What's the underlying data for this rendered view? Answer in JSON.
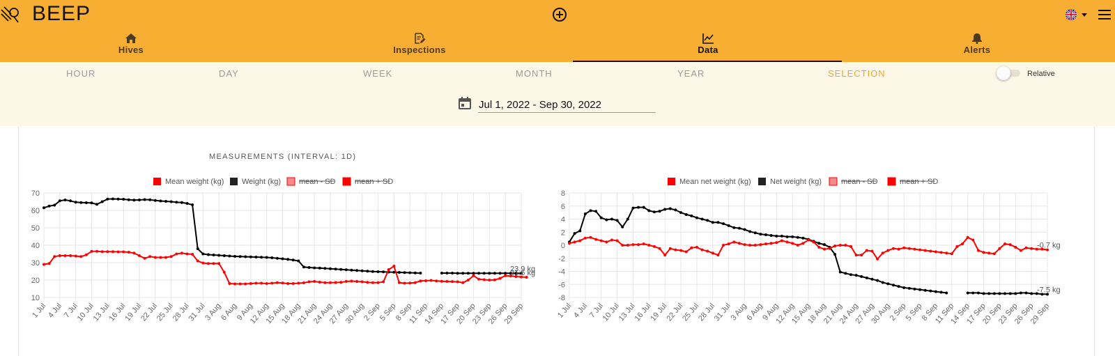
{
  "app": {
    "title": "BEEP"
  },
  "tabs": [
    {
      "label": "Hives",
      "icon": "home-icon"
    },
    {
      "label": "Inspections",
      "icon": "edit-document-icon"
    },
    {
      "label": "Data",
      "icon": "line-chart-icon",
      "active": true
    },
    {
      "label": "Alerts",
      "icon": "bell-icon"
    }
  ],
  "periods": [
    "HOUR",
    "DAY",
    "WEEK",
    "MONTH",
    "YEAR",
    "SELECTION"
  ],
  "active_period": "SELECTION",
  "relative_toggle": {
    "label": "Relative",
    "on": false
  },
  "date_range": {
    "value": "Jul 1, 2022 - Sep 30, 2022"
  },
  "section_title": "MEASUREMENTS (INTERVAL: 1D)",
  "colors": {
    "accent": "#f8ae33",
    "selection": "#f0a531",
    "mean": "#ff0000",
    "weight": "#000000",
    "sd_minus": "#f28b8b",
    "sd_plus": "#ff0000"
  },
  "chart_data": [
    {
      "type": "line",
      "legend": [
        {
          "label": "Mean weight (kg)",
          "color": "#ff0000",
          "hidden": false
        },
        {
          "label": "Weight (kg)",
          "color": "#222222",
          "hidden": false
        },
        {
          "label": "mean - SD",
          "color": "#f28b8b",
          "hidden": true
        },
        {
          "label": "mean + SD",
          "color": "#ff0000",
          "hidden": true
        }
      ],
      "ylim": [
        10,
        70
      ],
      "yticks": [
        70,
        60,
        50,
        40,
        30,
        20,
        10
      ],
      "xticks": [
        "1 Jul",
        "4 Jul",
        "7 Jul",
        "10 Jul",
        "13 Jul",
        "16 Jul",
        "19 Jul",
        "22 Jul",
        "25 Jul",
        "28 Jul",
        "31 Jul",
        "3 Aug",
        "6 Aug",
        "9 Aug",
        "12 Aug",
        "15 Aug",
        "18 Aug",
        "21 Aug",
        "24 Aug",
        "27 Aug",
        "30 Aug",
        "2 Sep",
        "5 Sep",
        "8 Sep",
        "11 Sep",
        "14 Sep",
        "17 Sep",
        "20 Sep",
        "23 Sep",
        "26 Sep",
        "29 Sep"
      ],
      "last_labels": [
        {
          "text": "23.9 kg",
          "y": 23.9
        },
        {
          "text": "21.6 kg",
          "y": 21.6
        }
      ],
      "series": [
        {
          "name": "Weight (kg)",
          "color": "#000000",
          "values": [
            61.5,
            62.5,
            63,
            65.5,
            66,
            65.5,
            64.7,
            64.5,
            64.4,
            64.3,
            63.5,
            65,
            66.5,
            66.6,
            66.5,
            66.4,
            66.1,
            65.9,
            66,
            66.2,
            66.1,
            65.7,
            65.4,
            65.2,
            65,
            64.7,
            64.5,
            64,
            63.2,
            38,
            35,
            34.6,
            34.4,
            34.2,
            34,
            33.8,
            33.6,
            33.5,
            33.4,
            33.3,
            33.2,
            33.1,
            33,
            32.8,
            32.5,
            32.2,
            31.9,
            31.5,
            31,
            27.5,
            27.2,
            27,
            26.9,
            26.7,
            26.5,
            26.3,
            26.1,
            25.9,
            25.7,
            25.5,
            25.3,
            25.1,
            24.9,
            24.8,
            24.7,
            24.6,
            24.5,
            24.4,
            24.3,
            24.2,
            24.1,
            24,
            null,
            null,
            null,
            24,
            24,
            24,
            23.9,
            23.9,
            23.9,
            23.9,
            23.9,
            23.9,
            23.9,
            23.9,
            23.9,
            23.9,
            23.9,
            23.9,
            23.9
          ]
        },
        {
          "name": "Mean weight (kg)",
          "color": "#ff0000",
          "values": [
            29,
            29.5,
            33.5,
            34,
            34,
            34,
            33.8,
            33.5,
            34.5,
            36.5,
            36.5,
            36.3,
            36.3,
            36.3,
            36.2,
            36.2,
            36,
            35.5,
            34,
            32.5,
            33.5,
            33,
            33,
            33,
            33.5,
            35,
            35.5,
            35,
            34.8,
            31,
            29.8,
            29.5,
            29.5,
            29.5,
            24.5,
            18,
            17.8,
            17.8,
            17.8,
            18,
            18.2,
            18.2,
            18,
            18.2,
            18.5,
            18.3,
            18,
            18,
            18.2,
            18.4,
            19,
            19.2,
            18.8,
            18.5,
            18.5,
            18.6,
            18.7,
            19.2,
            19.4,
            19.2,
            19,
            18.7,
            18.5,
            18.5,
            19,
            26,
            28,
            18.5,
            18.2,
            18.3,
            18.5,
            19.5,
            19.6,
            19.8,
            19.5,
            19.3,
            19.2,
            19.1,
            19,
            18.5,
            20,
            22.5,
            20.5,
            20.2,
            20,
            20.1,
            21,
            22.5,
            22.3,
            22,
            21.8,
            21.6
          ]
        }
      ]
    },
    {
      "type": "line",
      "legend": [
        {
          "label": "Mean net weight (kg)",
          "color": "#ff0000",
          "hidden": false
        },
        {
          "label": "Net weight (kg)",
          "color": "#222222",
          "hidden": false
        },
        {
          "label": "mean - SD",
          "color": "#f28b8b",
          "hidden": true
        },
        {
          "label": "mean + SD",
          "color": "#ff0000",
          "hidden": true
        }
      ],
      "ylim": [
        -8,
        8
      ],
      "yticks": [
        8,
        6,
        4,
        2,
        0,
        -2,
        -4,
        -6,
        -8
      ],
      "xticks": [
        "1 Jul",
        "4 Jul",
        "7 Jul",
        "10 Jul",
        "13 Jul",
        "16 Jul",
        "19 Jul",
        "22 Jul",
        "25 Jul",
        "28 Jul",
        "31 Jul",
        "3 Aug",
        "6 Aug",
        "9 Aug",
        "12 Aug",
        "15 Aug",
        "18 Aug",
        "21 Aug",
        "24 Aug",
        "27 Aug",
        "30 Aug",
        "2 Sep",
        "5 Sep",
        "8 Sep",
        "11 Sep",
        "14 Sep",
        "17 Sep",
        "20 Sep",
        "23 Sep",
        "26 Sep",
        "29 Sep"
      ],
      "last_labels": [
        {
          "text": "-0.7 kg",
          "y": -0.7
        },
        {
          "text": "-7.5 kg",
          "y": -7.5
        }
      ],
      "series": [
        {
          "name": "Net weight (kg)",
          "color": "#000000",
          "values": [
            0.5,
            1.8,
            2.2,
            4.8,
            5.3,
            5.2,
            4.2,
            3.9,
            4,
            3.8,
            2.8,
            4,
            5.7,
            5.8,
            5.8,
            5.3,
            5.1,
            5.2,
            5.5,
            5.6,
            5.4,
            5,
            4.7,
            4.5,
            4.2,
            4,
            3.8,
            3.5,
            3.5,
            3.3,
            3,
            2.7,
            2.6,
            2.4,
            2.1,
            1.9,
            1.7,
            1.6,
            1.5,
            1.4,
            1.4,
            1.3,
            1.3,
            1.2,
            1.1,
            0.9,
            0.6,
            0.3,
            0.1,
            -0.3,
            -1.4,
            -4.1,
            -4.3,
            -4.5,
            -4.6,
            -4.8,
            -5,
            -5.2,
            -5.4,
            -5.7,
            -5.9,
            -6.1,
            -6.3,
            -6.5,
            -6.6,
            -6.7,
            -6.8,
            -6.9,
            -7,
            -7.1,
            -7.2,
            -7.3,
            null,
            null,
            null,
            -7.3,
            -7.3,
            -7.3,
            -7.4,
            -7.4,
            -7.4,
            -7.4,
            -7.4,
            -7.4,
            -7.4,
            -7.3,
            -7.3,
            -7.4,
            -7.4,
            -7.5,
            -7.5
          ]
        },
        {
          "name": "Mean net weight (kg)",
          "color": "#ff0000",
          "values": [
            0.3,
            0.5,
            0.7,
            1.1,
            1.2,
            0.9,
            0.7,
            0.5,
            0.8,
            0.7,
            0,
            0,
            0.1,
            0.1,
            0.2,
            0,
            -0.2,
            -0.5,
            -1.5,
            -0.5,
            -0.7,
            -0.8,
            -1,
            -0.4,
            -0.3,
            -0.7,
            -0.9,
            -1.2,
            -1.5,
            0,
            0.2,
            0.5,
            0.3,
            0.1,
            0,
            0,
            0.1,
            0.2,
            0.3,
            0.4,
            0.7,
            0.5,
            0.3,
            0,
            0.3,
            0.8,
            0.5,
            -0.3,
            -0.6,
            -0.5,
            -0.1,
            0,
            0,
            -0.2,
            -1.5,
            -1.5,
            -0.8,
            -0.9,
            -2.1,
            -1.2,
            -0.8,
            -0.5,
            -0.6,
            -0.4,
            -0.5,
            -0.6,
            -0.7,
            -0.8,
            -0.9,
            -1,
            -1.1,
            -1.2,
            -1.3,
            -0.2,
            0.2,
            1.2,
            0.8,
            -0.8,
            -1.1,
            -1.2,
            -1.3,
            -0.5,
            0.2,
            0.1,
            -0.3,
            -0.8,
            -0.4,
            -0.5,
            -0.6,
            -0.6,
            -0.7
          ]
        }
      ]
    }
  ]
}
